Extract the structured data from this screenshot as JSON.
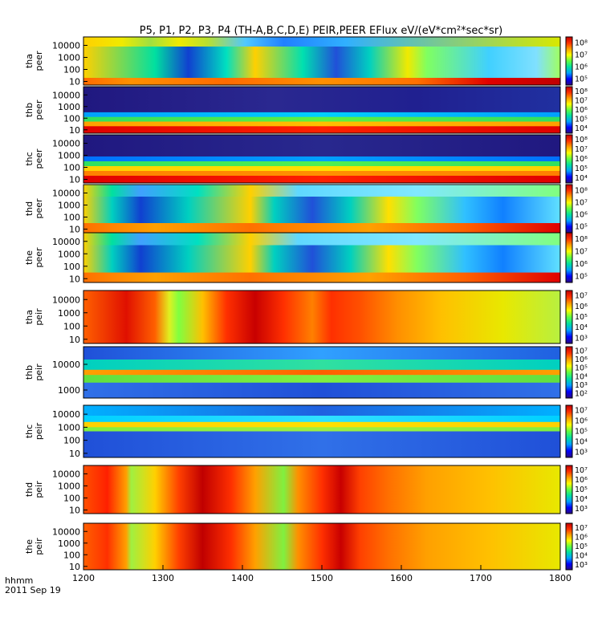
{
  "chart_data": {
    "type": "heatmap",
    "title": "P5, P1, P2, P3, P4 (TH-A,B,C,D,E) PEIR,PEER EFlux eV/(eV*cm²*sec*sr)",
    "time_axis": {
      "label": "hhmm",
      "date": "2011 Sep 19",
      "range": [
        1200,
        1800
      ],
      "tick_labels": [
        "1200",
        "1300",
        "1400",
        "1500",
        "1600",
        "1700",
        "1800"
      ]
    },
    "panels": [
      {
        "probe_label": "tha",
        "quantity_label": "peer",
        "y_ticks": [
          "10",
          "100",
          "1000",
          "10000"
        ],
        "colorbar_ticks": [
          "10⁵",
          "10⁶",
          "10⁷",
          "10⁸"
        ],
        "bands": [
          {
            "rows": [
              0.0,
              0.2
            ],
            "colors": [
              "#ffd000",
              "#f0ea00",
              "#a0e040",
              "#f0ea00",
              "#b8e030",
              "#50c8ff",
              "#2080ff",
              "#30b0ff",
              "#d8e800"
            ],
            "stops": [
              0,
              0.08,
              0.14,
              0.2,
              0.26,
              0.34,
              0.42,
              0.55,
              1
            ]
          },
          {
            "rows": [
              0.2,
              0.85
            ],
            "colors": [
              "#ffd000",
              "#00e0a0",
              "#1040d0",
              "#00e0c0",
              "#ffd000",
              "#00e0b0",
              "#2050d8",
              "#00d0c0",
              "#f0ea00",
              "#80ff60",
              "#40d0ff",
              "#80e0ff",
              "#a0ff60"
            ],
            "stops": [
              0,
              0.15,
              0.22,
              0.3,
              0.36,
              0.46,
              0.53,
              0.6,
              0.68,
              0.72,
              0.85,
              0.95,
              1
            ]
          },
          {
            "rows": [
              0.85,
              1.0
            ],
            "colors": [
              "#ff6a00",
              "#ff9000",
              "#ff6a00",
              "#ff9000",
              "#ff7000",
              "#e00000",
              "#c00000"
            ],
            "stops": [
              0,
              0.1,
              0.3,
              0.5,
              0.7,
              0.85,
              1
            ]
          }
        ]
      },
      {
        "probe_label": "thb",
        "quantity_label": "peer",
        "y_ticks": [
          "10",
          "100",
          "1000",
          "10000"
        ],
        "colorbar_ticks": [
          "10⁴",
          "10⁵",
          "10⁶",
          "10⁷",
          "10⁸"
        ],
        "bands": [
          {
            "rows": [
              0.0,
              0.55
            ],
            "colors": [
              "#201880",
              "#2a2890",
              "#202090",
              "#2030a0"
            ],
            "stops": [
              0,
              0.4,
              0.7,
              1
            ]
          },
          {
            "rows": [
              0.55,
              0.65
            ],
            "colors": [
              "#00a0ff",
              "#00d0ff",
              "#00a0ff"
            ],
            "stops": [
              0,
              0.5,
              1
            ]
          },
          {
            "rows": [
              0.65,
              0.75
            ],
            "colors": [
              "#30e060",
              "#60f040",
              "#30e060"
            ],
            "stops": [
              0,
              0.5,
              1
            ]
          },
          {
            "rows": [
              0.75,
              0.85
            ],
            "colors": [
              "#ffa000",
              "#ffc000",
              "#ffa000"
            ],
            "stops": [
              0,
              0.5,
              1
            ]
          },
          {
            "rows": [
              0.85,
              1.0
            ],
            "colors": [
              "#e00000",
              "#ff2000",
              "#e00000"
            ],
            "stops": [
              0,
              0.5,
              1
            ]
          }
        ]
      },
      {
        "probe_label": "thc",
        "quantity_label": "peer",
        "y_ticks": [
          "10",
          "100",
          "1000",
          "10000"
        ],
        "colorbar_ticks": [
          "10⁴",
          "10⁵",
          "10⁶",
          "10⁷",
          "10⁸"
        ],
        "bands": [
          {
            "rows": [
              0.0,
              0.45
            ],
            "colors": [
              "#201880",
              "#28288e",
              "#201880"
            ],
            "stops": [
              0,
              0.5,
              1
            ]
          },
          {
            "rows": [
              0.45,
              0.55
            ],
            "colors": [
              "#0070ff",
              "#00a0ff",
              "#0070ff"
            ],
            "stops": [
              0,
              0.5,
              1
            ]
          },
          {
            "rows": [
              0.55,
              0.65
            ],
            "colors": [
              "#30e060",
              "#50f050",
              "#30e060"
            ],
            "stops": [
              0,
              0.5,
              1
            ]
          },
          {
            "rows": [
              0.65,
              0.75
            ],
            "colors": [
              "#ffd000",
              "#ffe000",
              "#ffd000"
            ],
            "stops": [
              0,
              0.5,
              1
            ]
          },
          {
            "rows": [
              0.75,
              0.85
            ],
            "colors": [
              "#ff8000",
              "#ff9000",
              "#ff8000"
            ],
            "stops": [
              0,
              0.5,
              1
            ]
          },
          {
            "rows": [
              0.85,
              1.0
            ],
            "colors": [
              "#e00000",
              "#ff2000",
              "#e00000"
            ],
            "stops": [
              0,
              0.5,
              1
            ]
          }
        ]
      },
      {
        "probe_label": "thd",
        "quantity_label": "peer",
        "y_ticks": [
          "10",
          "100",
          "1000",
          "10000"
        ],
        "colorbar_ticks": [
          "10⁵",
          "10⁶",
          "10⁷",
          "10⁸"
        ],
        "bands": [
          {
            "rows": [
              0.0,
              0.25
            ],
            "colors": [
              "#ffd000",
              "#00e0a0",
              "#40a0ff",
              "#00e0c0",
              "#ffd000",
              "#60d8ff",
              "#80e8ff",
              "#80ff80"
            ],
            "stops": [
              0,
              0.06,
              0.12,
              0.24,
              0.35,
              0.45,
              0.7,
              1
            ]
          },
          {
            "rows": [
              0.25,
              0.8
            ],
            "colors": [
              "#ffd000",
              "#00d0c0",
              "#1040d0",
              "#00d0c0",
              "#ffd000",
              "#00d0c0",
              "#2050d8",
              "#00d0c0",
              "#ffe000",
              "#80ff60",
              "#30c0ff",
              "#1080ff",
              "#60e0ff"
            ],
            "stops": [
              0,
              0.06,
              0.12,
              0.22,
              0.35,
              0.4,
              0.48,
              0.56,
              0.64,
              0.7,
              0.8,
              0.88,
              1
            ]
          },
          {
            "rows": [
              0.8,
              1.0
            ],
            "colors": [
              "#ff7000",
              "#ffa000",
              "#ff7000",
              "#ffa000",
              "#ff6000",
              "#e00000"
            ],
            "stops": [
              0,
              0.15,
              0.35,
              0.6,
              0.8,
              1
            ]
          }
        ]
      },
      {
        "probe_label": "the",
        "quantity_label": "peer",
        "y_ticks": [
          "10",
          "100",
          "1000",
          "10000"
        ],
        "colorbar_ticks": [
          "10⁵",
          "10⁶",
          "10⁷",
          "10⁸"
        ],
        "bands": [
          {
            "rows": [
              0.0,
              0.25
            ],
            "colors": [
              "#ffd000",
              "#00e0a0",
              "#40a0ff",
              "#00e0c0",
              "#ffd000",
              "#60d8ff",
              "#80e8ff",
              "#80ff80"
            ],
            "stops": [
              0,
              0.06,
              0.12,
              0.24,
              0.35,
              0.45,
              0.7,
              1
            ]
          },
          {
            "rows": [
              0.25,
              0.8
            ],
            "colors": [
              "#ffd000",
              "#00d0c0",
              "#1040d0",
              "#00d0c0",
              "#ffd000",
              "#00d0c0",
              "#2050d8",
              "#00d0c0",
              "#ffe000",
              "#80ff60",
              "#30c0ff",
              "#1080ff",
              "#60e0ff"
            ],
            "stops": [
              0,
              0.06,
              0.12,
              0.22,
              0.35,
              0.4,
              0.48,
              0.56,
              0.64,
              0.7,
              0.8,
              0.88,
              1
            ]
          },
          {
            "rows": [
              0.8,
              1.0
            ],
            "colors": [
              "#ff7000",
              "#ffa000",
              "#ff7000",
              "#ffa000",
              "#ff6000",
              "#e00000"
            ],
            "stops": [
              0,
              0.15,
              0.35,
              0.6,
              0.8,
              1
            ]
          }
        ]
      },
      {
        "probe_label": "tha",
        "quantity_label": "peir",
        "y_ticks": [
          "10",
          "100",
          "1000",
          "10000"
        ],
        "colorbar_ticks": [
          "10³",
          "10⁴",
          "10⁵",
          "10⁶",
          "10⁷"
        ],
        "bands": [
          {
            "rows": [
              0.0,
              1.0
            ],
            "colors": [
              "#ff6000",
              "#e01000",
              "#ff6000",
              "#e0f020",
              "#80ff40",
              "#ffc000",
              "#ff3000",
              "#c80000",
              "#ff3000",
              "#ff8000",
              "#ff3000",
              "#ff5000",
              "#ff9000",
              "#ffc000",
              "#e8e800",
              "#b8f040"
            ],
            "stops": [
              0,
              0.09,
              0.15,
              0.18,
              0.2,
              0.25,
              0.3,
              0.36,
              0.42,
              0.48,
              0.52,
              0.58,
              0.66,
              0.75,
              0.88,
              1
            ]
          }
        ]
      },
      {
        "probe_label": "thb",
        "quantity_label": "peir",
        "y_ticks": [
          "1000",
          "10000"
        ],
        "colorbar_ticks": [
          "10²",
          "10³",
          "10⁴",
          "10⁵",
          "10⁶",
          "10⁷"
        ],
        "bands": [
          {
            "rows": [
              0.0,
              0.25
            ],
            "colors": [
              "#2050d8",
              "#30a0ff",
              "#2060e0"
            ],
            "stops": [
              0,
              0.5,
              1
            ]
          },
          {
            "rows": [
              0.25,
              0.45
            ],
            "colors": [
              "#00d0c0",
              "#30e0a0",
              "#00d0c0"
            ],
            "stops": [
              0,
              0.5,
              1
            ]
          },
          {
            "rows": [
              0.45,
              0.55
            ],
            "colors": [
              "#ffa000",
              "#ff6000",
              "#ffa000"
            ],
            "stops": [
              0,
              0.5,
              1
            ]
          },
          {
            "rows": [
              0.55,
              0.7
            ],
            "colors": [
              "#60e040",
              "#80f040",
              "#60e040"
            ],
            "stops": [
              0,
              0.5,
              1
            ]
          },
          {
            "rows": [
              0.7,
              1.0
            ],
            "colors": [
              "#3070e8",
              "#2050d8",
              "#3070e8"
            ],
            "stops": [
              0,
              0.5,
              1
            ]
          }
        ]
      },
      {
        "probe_label": "thc",
        "quantity_label": "peir",
        "y_ticks": [
          "10",
          "100",
          "1000",
          "10000"
        ],
        "colorbar_ticks": [
          "10³",
          "10⁴",
          "10⁵",
          "10⁶",
          "10⁷"
        ],
        "bands": [
          {
            "rows": [
              0.0,
              0.2
            ],
            "colors": [
              "#00b0ff",
              "#2060e0",
              "#00b0ff"
            ],
            "stops": [
              0,
              0.5,
              1
            ]
          },
          {
            "rows": [
              0.2,
              0.32
            ],
            "colors": [
              "#00d0ff",
              "#30e0ff",
              "#00d0ff"
            ],
            "stops": [
              0,
              0.5,
              1
            ]
          },
          {
            "rows": [
              0.32,
              0.42
            ],
            "colors": [
              "#ffd000",
              "#ffe000",
              "#ffd000"
            ],
            "stops": [
              0,
              0.5,
              1
            ]
          },
          {
            "rows": [
              0.42,
              0.5
            ],
            "colors": [
              "#80f040",
              "#a0f040",
              "#80f040"
            ],
            "stops": [
              0,
              0.5,
              1
            ]
          },
          {
            "rows": [
              0.5,
              1.0
            ],
            "colors": [
              "#2050d8",
              "#3070e8",
              "#2050d8"
            ],
            "stops": [
              0,
              0.5,
              1
            ]
          }
        ]
      },
      {
        "probe_label": "thd",
        "quantity_label": "peir",
        "y_ticks": [
          "10",
          "100",
          "1000",
          "10000"
        ],
        "colorbar_ticks": [
          "10³",
          "10⁴",
          "10⁵",
          "10⁶",
          "10⁷"
        ],
        "bands": [
          {
            "rows": [
              0.0,
              1.0
            ],
            "colors": [
              "#ff5000",
              "#ff2000",
              "#ffa000",
              "#a0f040",
              "#ffd000",
              "#ff4000",
              "#c00000",
              "#ff3000",
              "#ffa000",
              "#80f040",
              "#ff9000",
              "#ff3000",
              "#c80000",
              "#ff4000",
              "#ff7000",
              "#ffa000",
              "#ffc000",
              "#e8e800"
            ],
            "stops": [
              0,
              0.05,
              0.09,
              0.1,
              0.15,
              0.2,
              0.25,
              0.31,
              0.36,
              0.42,
              0.45,
              0.5,
              0.54,
              0.58,
              0.64,
              0.72,
              0.85,
              1
            ]
          }
        ]
      },
      {
        "probe_label": "the",
        "quantity_label": "peir",
        "y_ticks": [
          "10",
          "100",
          "1000",
          "10000"
        ],
        "colorbar_ticks": [
          "10³",
          "10⁴",
          "10⁵",
          "10⁶",
          "10⁷"
        ],
        "bands": [
          {
            "rows": [
              0.0,
              1.0
            ],
            "colors": [
              "#ff6000",
              "#ff3000",
              "#ffa000",
              "#a0f040",
              "#ffd000",
              "#ff4000",
              "#c00000",
              "#ff3000",
              "#ffa000",
              "#80f040",
              "#ff9000",
              "#ff3000",
              "#c80000",
              "#ff4000",
              "#ff7000",
              "#ffa000",
              "#ffc000",
              "#e8e800"
            ],
            "stops": [
              0,
              0.05,
              0.09,
              0.1,
              0.15,
              0.2,
              0.25,
              0.31,
              0.36,
              0.42,
              0.45,
              0.5,
              0.54,
              0.58,
              0.64,
              0.72,
              0.85,
              1
            ]
          }
        ]
      }
    ],
    "colormap": [
      "#2a0a80",
      "#0000ff",
      "#00a0ff",
      "#00e0a0",
      "#60ff40",
      "#ffff00",
      "#ffa000",
      "#ff3000",
      "#c00000"
    ]
  }
}
